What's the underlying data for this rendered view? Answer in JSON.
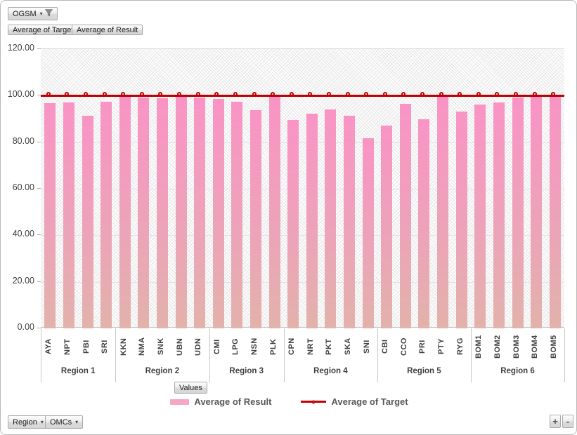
{
  "pivot": {
    "page_filter": {
      "label": "OGSM"
    },
    "data_field_buttons": [
      {
        "label": "Average of Target"
      },
      {
        "label": "Average of Result"
      }
    ],
    "values_button": {
      "label": "Values"
    },
    "axis_field_buttons": [
      {
        "label": "Region"
      },
      {
        "label": "OMCs"
      }
    ],
    "zoom_in_label": "+",
    "zoom_out_label": "-"
  },
  "legend": {
    "items": [
      {
        "label": "Average of Result",
        "marker": "bar",
        "color": "#f4a6c4"
      },
      {
        "label": "Average of Target",
        "marker": "line",
        "color": "#c00000"
      }
    ]
  },
  "colors": {
    "bar_top": "#f994c5",
    "bar_bottom": "#e2b2ab",
    "target_line": "#c00000",
    "axis_text": "#3f3f3f"
  },
  "chart_data": {
    "type": "bar",
    "title": "",
    "xlabel": "",
    "ylabel": "",
    "ylim": [
      0,
      120
    ],
    "y_tick_step": 20,
    "y_tick_labels": [
      "0.00",
      "20.00",
      "40.00",
      "60.00",
      "80.00",
      "100.00",
      "120.00"
    ],
    "grid": true,
    "legend_position": "bottom",
    "groups": [
      {
        "region": "Region 1",
        "categories": [
          "AYA",
          "NPT",
          "PBI",
          "SRI"
        ]
      },
      {
        "region": "Region 2",
        "categories": [
          "KKN",
          "NMA",
          "SNK",
          "UBN",
          "UDN"
        ]
      },
      {
        "region": "Region 3",
        "categories": [
          "CMI",
          "LPG",
          "NSN",
          "PLK"
        ]
      },
      {
        "region": "Region 4",
        "categories": [
          "CPN",
          "NRT",
          "PKT",
          "SKA",
          "SNI"
        ]
      },
      {
        "region": "Region 5",
        "categories": [
          "CBI",
          "CCO",
          "PRI",
          "PTY",
          "RYG"
        ]
      },
      {
        "region": "Region 6",
        "categories": [
          "BOM1",
          "BOM2",
          "BOM3",
          "BOM4",
          "BOM5"
        ]
      }
    ],
    "series": [
      {
        "name": "Average of Result",
        "type": "bar",
        "values": [
          96.7,
          97.2,
          91.5,
          97.4,
          99.8,
          99.2,
          99.0,
          99.5,
          99.3,
          98.7,
          97.3,
          93.7,
          99.8,
          89.7,
          92.4,
          94.1,
          91.3,
          81.6,
          87.3,
          96.4,
          89.8,
          99.6,
          93.3,
          96.2,
          97.1,
          99.3,
          99.6,
          99.8
        ]
      },
      {
        "name": "Average of Target",
        "type": "line",
        "values": [
          100,
          100,
          100,
          100,
          100,
          100,
          100,
          100,
          100,
          100,
          100,
          100,
          100,
          100,
          100,
          100,
          100,
          100,
          100,
          100,
          100,
          100,
          100,
          100,
          100,
          100,
          100,
          100
        ]
      }
    ]
  }
}
